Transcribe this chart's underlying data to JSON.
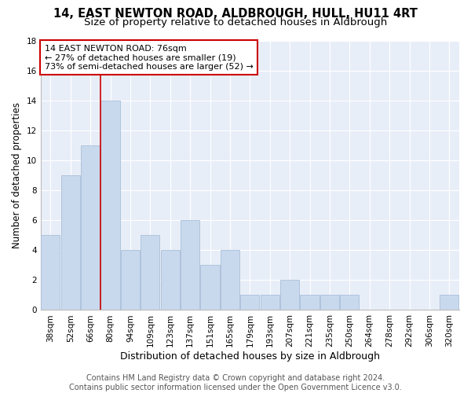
{
  "title": "14, EAST NEWTON ROAD, ALDBROUGH, HULL, HU11 4RT",
  "subtitle": "Size of property relative to detached houses in Aldbrough",
  "xlabel": "Distribution of detached houses by size in Aldbrough",
  "ylabel": "Number of detached properties",
  "bar_color": "#c9d9ed",
  "bar_edgecolor": "#a8bfd8",
  "background_color": "#e8eef8",
  "grid_color": "#ffffff",
  "fig_bg": "#ffffff",
  "categories": [
    "38sqm",
    "52sqm",
    "66sqm",
    "80sqm",
    "94sqm",
    "109sqm",
    "123sqm",
    "137sqm",
    "151sqm",
    "165sqm",
    "179sqm",
    "193sqm",
    "207sqm",
    "221sqm",
    "235sqm",
    "250sqm",
    "264sqm",
    "278sqm",
    "292sqm",
    "306sqm",
    "320sqm"
  ],
  "values": [
    5,
    9,
    11,
    14,
    4,
    5,
    4,
    6,
    3,
    4,
    1,
    1,
    2,
    1,
    1,
    1,
    0,
    0,
    0,
    0,
    1
  ],
  "vline_x": 2.5,
  "vline_color": "#cc0000",
  "annotation_line1": "14 EAST NEWTON ROAD: 76sqm",
  "annotation_line2": "← 27% of detached houses are smaller (19)",
  "annotation_line3": "73% of semi-detached houses are larger (52) →",
  "annotation_box_color": "#ffffff",
  "annotation_border_color": "#cc0000",
  "ylim": [
    0,
    18
  ],
  "yticks": [
    0,
    2,
    4,
    6,
    8,
    10,
    12,
    14,
    16,
    18
  ],
  "footer_text": "Contains HM Land Registry data © Crown copyright and database right 2024.\nContains public sector information licensed under the Open Government Licence v3.0.",
  "title_fontsize": 10.5,
  "subtitle_fontsize": 9.5,
  "xlabel_fontsize": 9,
  "ylabel_fontsize": 8.5,
  "tick_fontsize": 7.5,
  "annotation_fontsize": 8,
  "footer_fontsize": 7
}
